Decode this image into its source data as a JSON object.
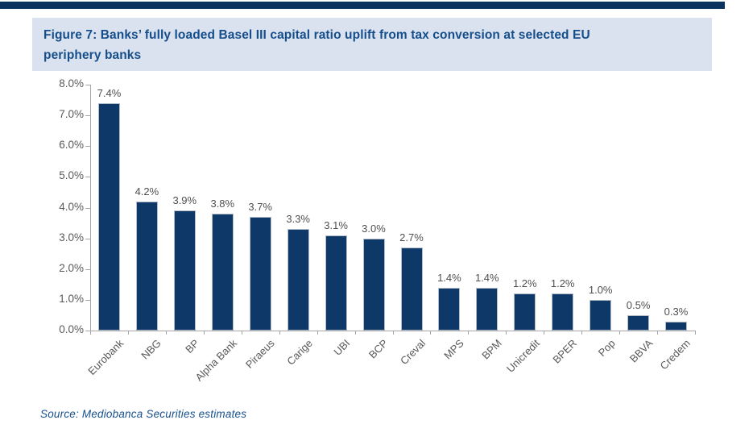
{
  "page": {
    "top_bar_color": "#0b335e",
    "title_box_bg": "#d9e2ee"
  },
  "figure": {
    "title_lines": [
      "Figure 7: Banks’ fully loaded Basel III capital ratio uplift from tax conversion at selected EU",
      "periphery banks"
    ],
    "source": "Source: Mediobanca Securities estimates"
  },
  "chart_data": {
    "type": "bar",
    "title": "Figure 7: Banks’ fully loaded Basel III capital ratio uplift from tax conversion at selected EU periphery banks",
    "categories": [
      "Eurobank",
      "NBG",
      "BP",
      "Alpha Bank",
      "Piraeus",
      "Carige",
      "UBI",
      "BCP",
      "Creval",
      "MPS",
      "BPM",
      "Unicredit",
      "BPER",
      "Pop",
      "BBVA",
      "Credem"
    ],
    "values": [
      7.4,
      4.2,
      3.9,
      3.8,
      3.7,
      3.3,
      3.1,
      3.0,
      2.7,
      1.4,
      1.4,
      1.2,
      1.2,
      1.0,
      0.5,
      0.3
    ],
    "data_labels": [
      "7.4%",
      "4.2%",
      "3.9%",
      "3.8%",
      "3.7%",
      "3.3%",
      "3.1%",
      "3.0%",
      "2.7%",
      "1.4%",
      "1.4%",
      "1.2%",
      "1.2%",
      "1.0%",
      "0.5%",
      "0.3%"
    ],
    "y_ticks": [
      "0.0%",
      "1.0%",
      "2.0%",
      "3.0%",
      "4.0%",
      "5.0%",
      "6.0%",
      "7.0%",
      "8.0%"
    ],
    "y_tick_step": 1.0,
    "ylim": [
      0,
      8
    ],
    "xlabel": "",
    "ylabel": "",
    "grid": false,
    "legend": "none",
    "bar_color": "#0d3868",
    "axis_color": "#a6a6a6",
    "label_color": "#595959"
  }
}
